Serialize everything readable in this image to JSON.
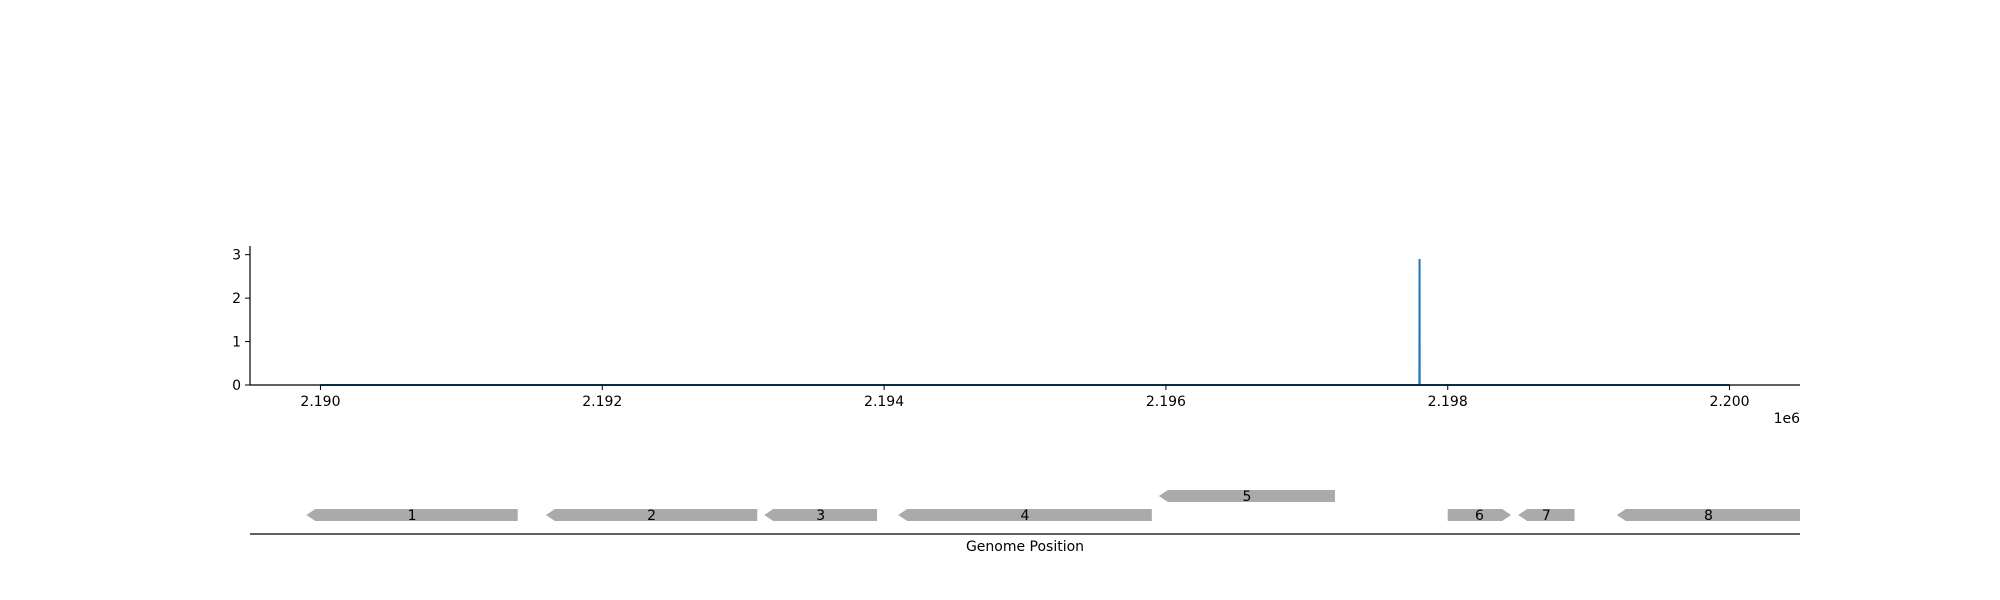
{
  "chart_data": [
    {
      "type": "line",
      "xlim": [
        2189500,
        2200500
      ],
      "ylim": [
        0,
        3.2
      ],
      "x_ticks": [
        2190000,
        2192000,
        2194000,
        2196000,
        2198000,
        2200000
      ],
      "x_tick_labels": [
        "2.190",
        "2.192",
        "2.194",
        "2.196",
        "2.198",
        "2.200"
      ],
      "x_offset_label": "1e6",
      "y_ticks": [
        0,
        1,
        2,
        3
      ],
      "y_tick_labels": [
        "0",
        "1",
        "2",
        "3"
      ],
      "series": [
        {
          "color": "#1f77b4",
          "x": [
            2190000,
            2197799,
            2197800,
            2197801,
            2200000
          ],
          "y": [
            0,
            0,
            2.9,
            0,
            0
          ]
        }
      ]
    },
    {
      "type": "gene_track",
      "xlabel": "Genome Position",
      "xlim": [
        2189500,
        2200500
      ],
      "fill_color": "#aaaaaa",
      "genes": [
        {
          "label": "1",
          "start": 2189900,
          "end": 2191400,
          "strand": "-",
          "row": 0
        },
        {
          "label": "2",
          "start": 2191600,
          "end": 2193100,
          "strand": "-",
          "row": 0
        },
        {
          "label": "3",
          "start": 2193150,
          "end": 2193950,
          "strand": "-",
          "row": 0
        },
        {
          "label": "4",
          "start": 2194100,
          "end": 2195900,
          "strand": "-",
          "row": 0
        },
        {
          "label": "5",
          "start": 2195950,
          "end": 2197200,
          "strand": "-",
          "row": 1
        },
        {
          "label": "6",
          "start": 2198000,
          "end": 2198450,
          "strand": "+",
          "row": 0
        },
        {
          "label": "7",
          "start": 2198500,
          "end": 2198900,
          "strand": "-",
          "row": 0
        },
        {
          "label": "8",
          "start": 2199200,
          "end": 2200500,
          "strand": "-",
          "row": 0
        }
      ]
    }
  ]
}
